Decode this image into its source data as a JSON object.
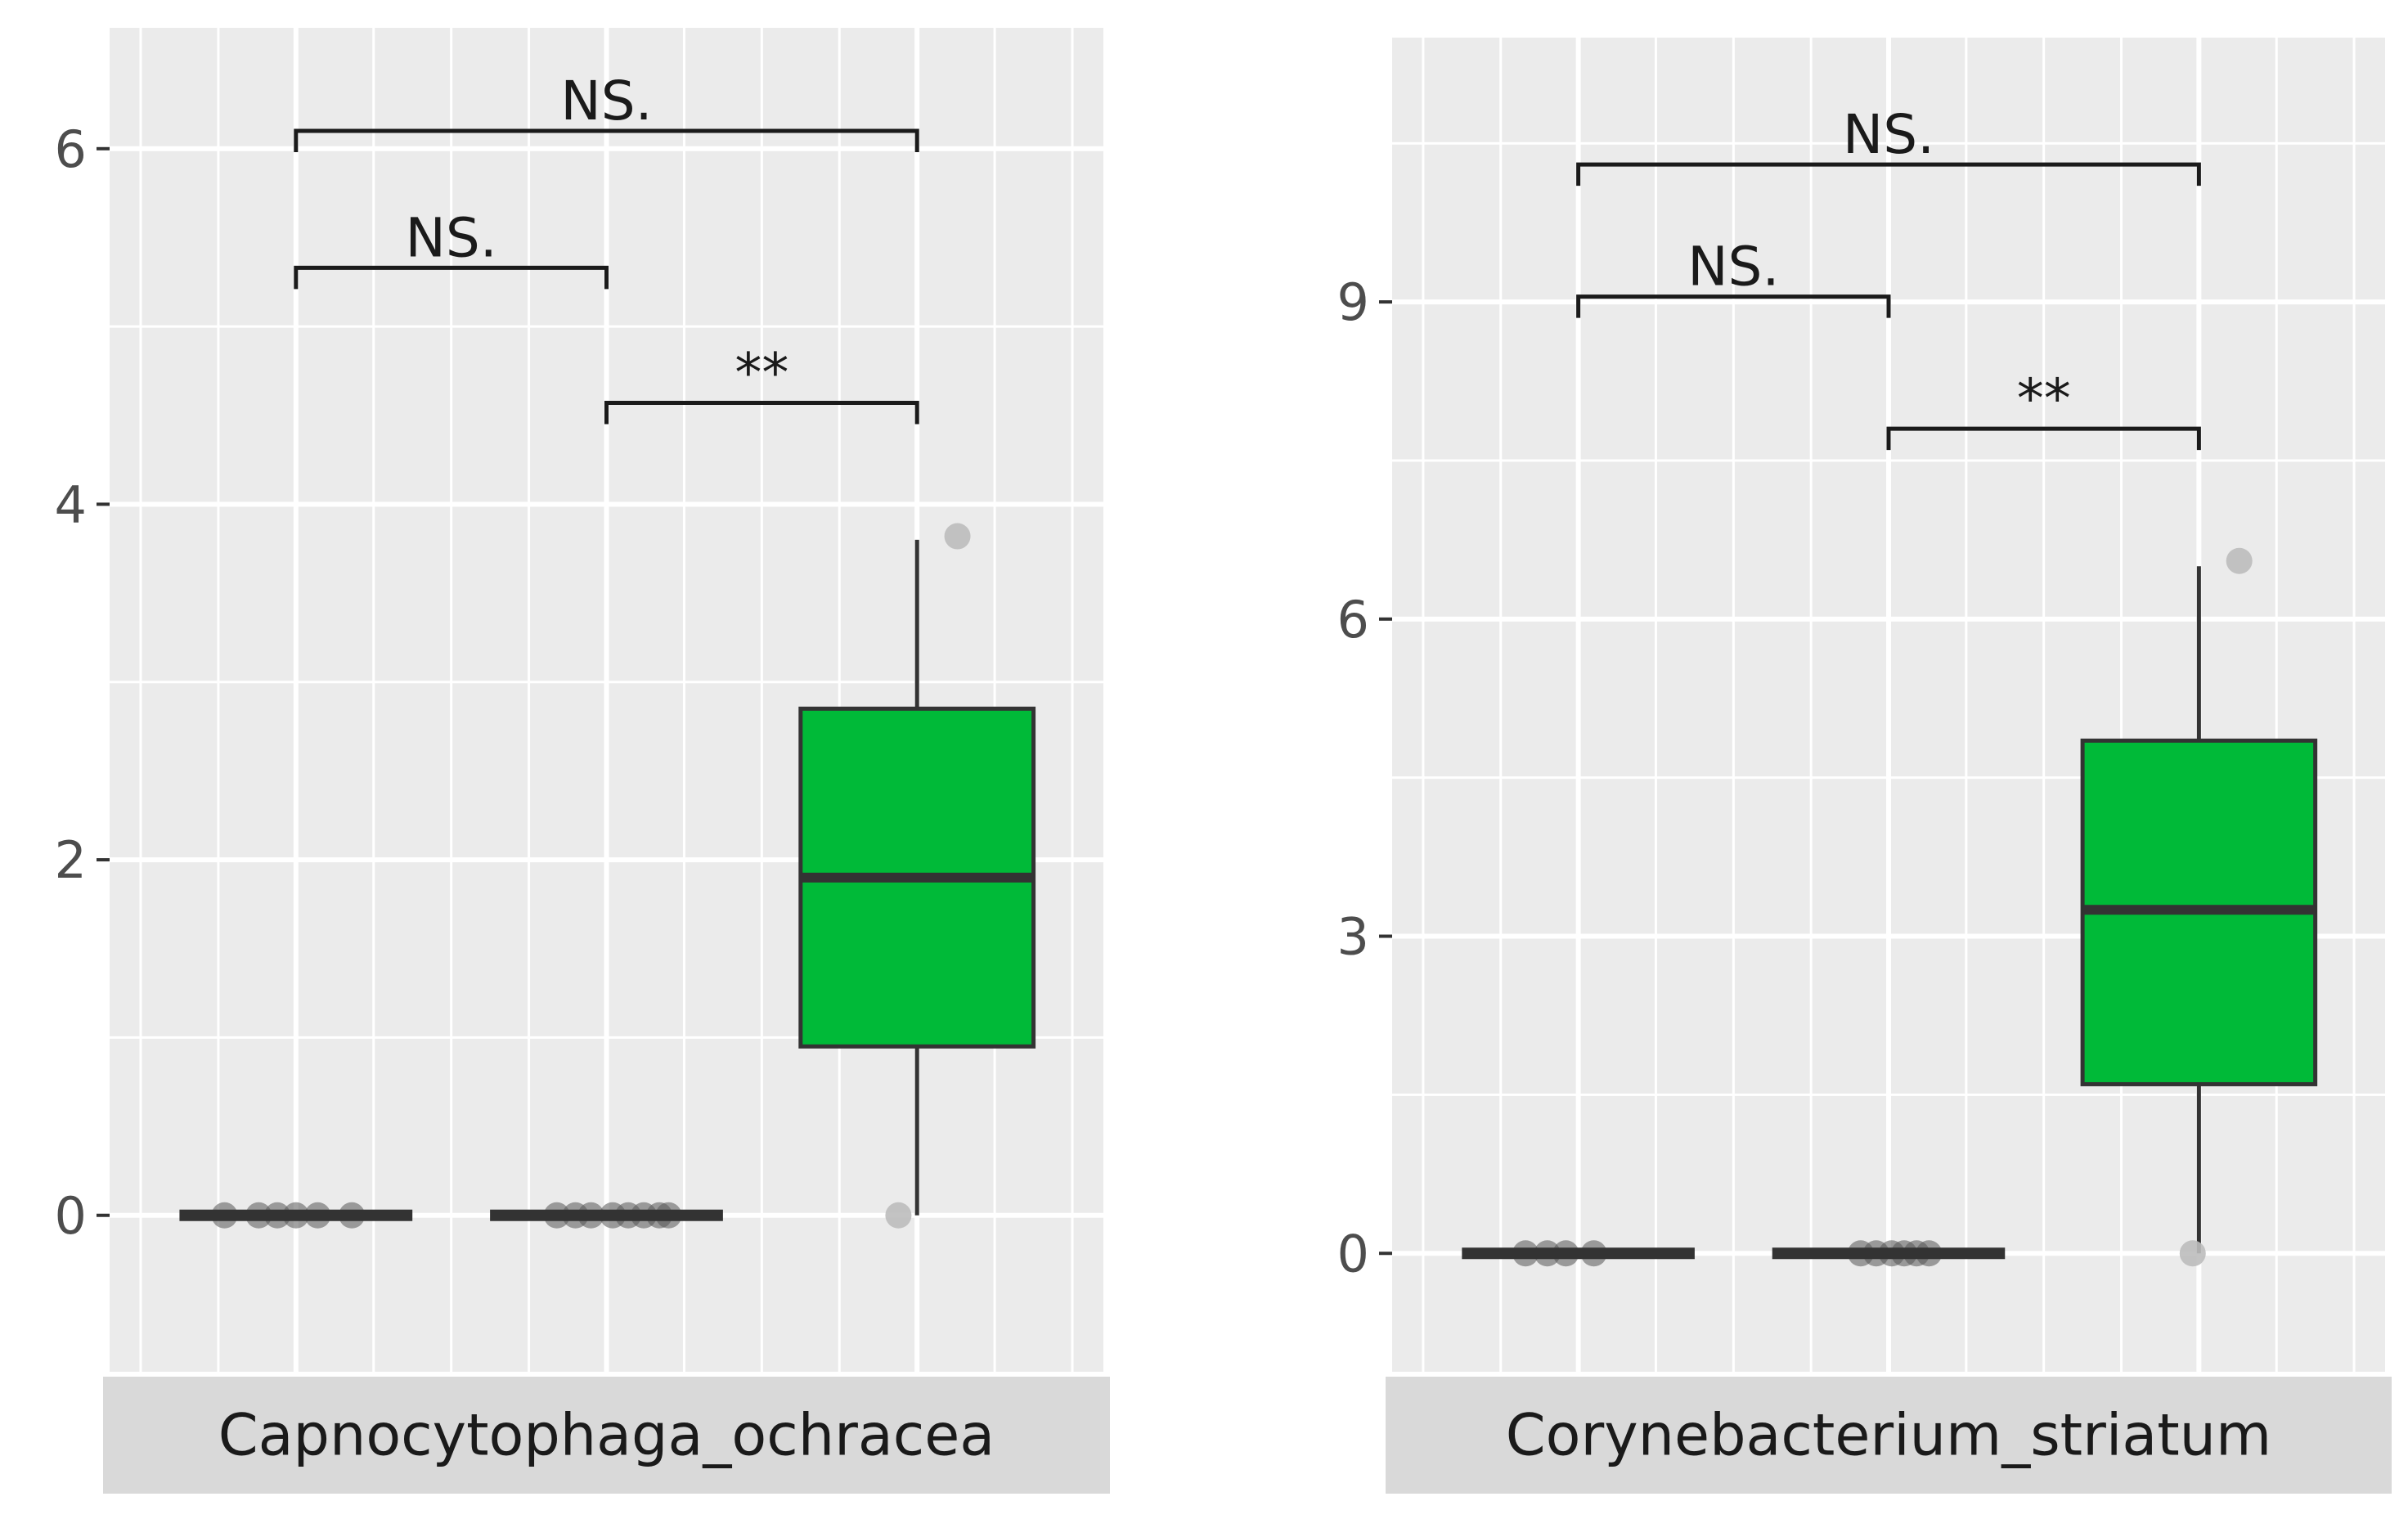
{
  "chart_data": [
    {
      "type": "box",
      "facet": "Capnocytophaga_ochracea",
      "title": "",
      "xlabel": "",
      "ylabel": "",
      "legend": "none",
      "grid": true,
      "ylim": [
        -0.88,
        6.68
      ],
      "yticks": [
        0,
        2,
        4,
        6
      ],
      "fill_color": "#00ba38",
      "groups": [
        {
          "box": {
            "min": 0,
            "q1": 0,
            "median": 0,
            "q3": 0,
            "max": 0
          },
          "points": [
            {
              "x": -0.12,
              "y": 0
            },
            {
              "x": -0.06,
              "y": 0
            },
            {
              "x": 0.0,
              "y": 0
            },
            {
              "x": 0.07,
              "y": 0
            },
            {
              "x": 0.18,
              "y": 0
            },
            {
              "x": -0.23,
              "y": 0
            }
          ]
        },
        {
          "box": {
            "min": 0,
            "q1": 0,
            "median": 0,
            "q3": 0,
            "max": 0
          },
          "points": [
            {
              "x": -0.16,
              "y": 0
            },
            {
              "x": -0.1,
              "y": 0
            },
            {
              "x": -0.05,
              "y": 0
            },
            {
              "x": 0.02,
              "y": 0
            },
            {
              "x": 0.07,
              "y": 0
            },
            {
              "x": 0.12,
              "y": 0
            },
            {
              "x": 0.17,
              "y": 0
            },
            {
              "x": 0.2,
              "y": 0
            }
          ]
        },
        {
          "box": {
            "min": 0,
            "q1": 0.95,
            "median": 1.9,
            "q3": 2.85,
            "max": 3.8
          },
          "points": [
            {
              "x": -0.06,
              "y": 0
            },
            {
              "x": 0.13,
              "y": 3.82
            }
          ]
        }
      ],
      "comparisons": [
        {
          "from": 1,
          "to": 3,
          "y": 6.1,
          "label": "NS."
        },
        {
          "from": 1,
          "to": 2,
          "y": 5.33,
          "label": "NS."
        },
        {
          "from": 2,
          "to": 3,
          "y": 4.57,
          "label": "**"
        }
      ]
    },
    {
      "type": "box",
      "facet": "Corynebacterium_striatum",
      "title": "",
      "xlabel": "",
      "ylabel": "",
      "legend": "none",
      "grid": true,
      "ylim": [
        -1.12,
        11.5
      ],
      "yticks": [
        0,
        3,
        6,
        9
      ],
      "fill_color": "#00ba38",
      "groups": [
        {
          "box": {
            "min": 0,
            "q1": 0,
            "median": 0,
            "q3": 0,
            "max": 0
          },
          "points": [
            {
              "x": -0.17,
              "y": 0
            },
            {
              "x": -0.1,
              "y": 0
            },
            {
              "x": -0.04,
              "y": 0
            },
            {
              "x": 0.05,
              "y": 0
            }
          ]
        },
        {
          "box": {
            "min": 0,
            "q1": 0,
            "median": 0,
            "q3": 0,
            "max": 0
          },
          "points": [
            {
              "x": -0.09,
              "y": 0
            },
            {
              "x": -0.04,
              "y": 0
            },
            {
              "x": 0.01,
              "y": 0
            },
            {
              "x": 0.05,
              "y": 0
            },
            {
              "x": 0.09,
              "y": 0
            },
            {
              "x": 0.13,
              "y": 0
            }
          ]
        },
        {
          "box": {
            "min": 0,
            "q1": 1.6,
            "median": 3.25,
            "q3": 4.85,
            "max": 6.5
          },
          "points": [
            {
              "x": -0.02,
              "y": 0
            },
            {
              "x": 0.13,
              "y": 6.55
            }
          ]
        }
      ],
      "comparisons": [
        {
          "from": 1,
          "to": 3,
          "y": 10.3,
          "label": "NS."
        },
        {
          "from": 1,
          "to": 2,
          "y": 9.05,
          "label": "NS."
        },
        {
          "from": 2,
          "to": 3,
          "y": 7.8,
          "label": "**"
        }
      ]
    }
  ]
}
